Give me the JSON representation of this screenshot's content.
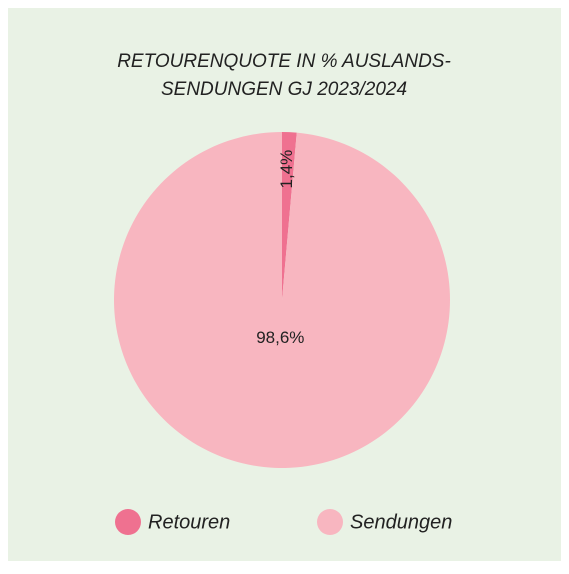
{
  "chart_data": {
    "type": "pie",
    "title": [
      "RETOURENQUOTE IN % AUSLANDS-",
      "SENDUNGEN GJ 2023/2024"
    ],
    "categories": [
      "Retouren",
      "Sendungen"
    ],
    "values": [
      1.4,
      98.6
    ],
    "value_labels": [
      "1,4%",
      "98,6%"
    ],
    "colors": [
      "#ef7190",
      "#f8b6c0"
    ],
    "legend": "bottom"
  }
}
